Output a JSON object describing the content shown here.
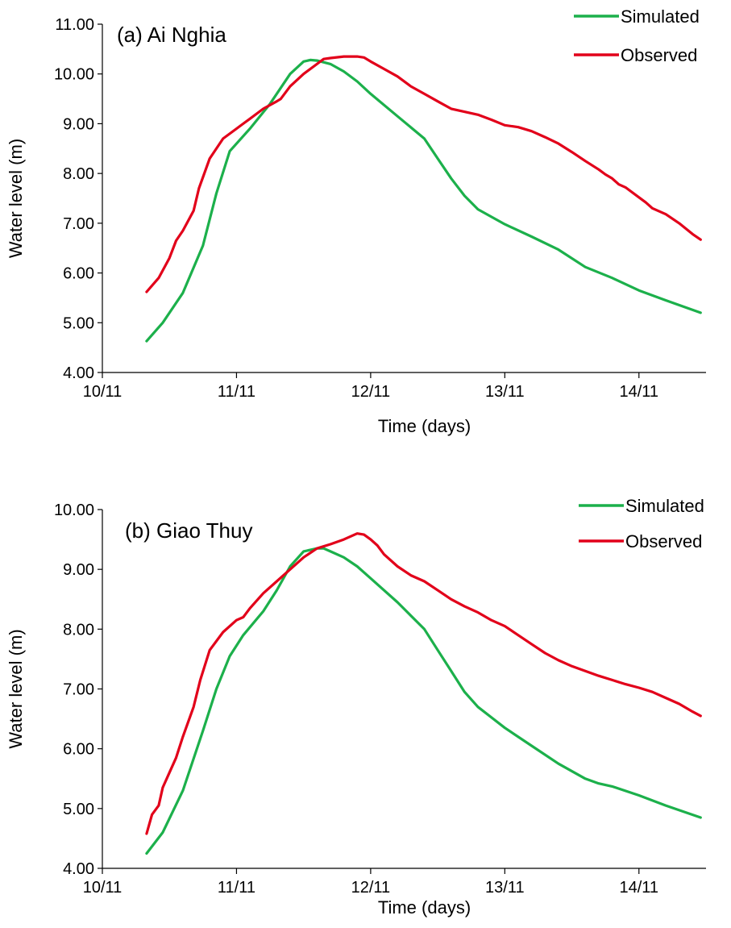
{
  "chart_data": [
    {
      "type": "line",
      "title": "(a) Ai Nghia",
      "xlabel": "Time (days)",
      "ylabel": "Water level (m)",
      "xlim": [
        0,
        4.5
      ],
      "ylim": [
        4,
        11
      ],
      "grid": false,
      "legend_position": "top-right",
      "x_ticks": [
        {
          "x": 0,
          "label": "10/11"
        },
        {
          "x": 1,
          "label": "11/11"
        },
        {
          "x": 2,
          "label": "12/11"
        },
        {
          "x": 3,
          "label": "13/11"
        },
        {
          "x": 4,
          "label": "14/11"
        }
      ],
      "y_ticks": [
        {
          "y": 4,
          "label": "4.00"
        },
        {
          "y": 5,
          "label": "5.00"
        },
        {
          "y": 6,
          "label": "6.00"
        },
        {
          "y": 7,
          "label": "7.00"
        },
        {
          "y": 8,
          "label": "8.00"
        },
        {
          "y": 9,
          "label": "9.00"
        },
        {
          "y": 10,
          "label": "10.00"
        },
        {
          "y": 11,
          "label": "11.00"
        }
      ],
      "series": [
        {
          "name": "Simulated",
          "color": "#1cb04b",
          "x": [
            0.33,
            0.45,
            0.6,
            0.75,
            0.85,
            0.95,
            1.1,
            1.25,
            1.4,
            1.5,
            1.55,
            1.6,
            1.7,
            1.8,
            1.9,
            2.0,
            2.2,
            2.4,
            2.5,
            2.6,
            2.7,
            2.8,
            3.0,
            3.2,
            3.4,
            3.6,
            3.8,
            4.0,
            4.2,
            4.46
          ],
          "y": [
            4.63,
            5.0,
            5.6,
            6.55,
            7.6,
            8.45,
            8.9,
            9.4,
            10.0,
            10.25,
            10.28,
            10.27,
            10.2,
            10.05,
            9.85,
            9.6,
            9.15,
            8.7,
            8.3,
            7.9,
            7.55,
            7.28,
            6.98,
            6.73,
            6.47,
            6.12,
            5.9,
            5.65,
            5.45,
            5.2
          ]
        },
        {
          "name": "Observed",
          "color": "#e2001a",
          "x": [
            0.33,
            0.42,
            0.5,
            0.55,
            0.6,
            0.68,
            0.72,
            0.8,
            0.9,
            1.0,
            1.05,
            1.1,
            1.2,
            1.3,
            1.33,
            1.4,
            1.5,
            1.6,
            1.65,
            1.7,
            1.8,
            1.9,
            1.95,
            2.0,
            2.1,
            2.2,
            2.3,
            2.4,
            2.5,
            2.6,
            2.8,
            2.9,
            3.0,
            3.1,
            3.2,
            3.3,
            3.4,
            3.5,
            3.6,
            3.7,
            3.75,
            3.8,
            3.85,
            3.9,
            4.0,
            4.05,
            4.1,
            4.2,
            4.3,
            4.4,
            4.46
          ],
          "y": [
            5.62,
            5.9,
            6.3,
            6.65,
            6.85,
            7.25,
            7.7,
            8.3,
            8.7,
            8.9,
            9.0,
            9.1,
            9.3,
            9.45,
            9.5,
            9.75,
            10.0,
            10.2,
            10.3,
            10.32,
            10.35,
            10.35,
            10.33,
            10.25,
            10.1,
            9.95,
            9.75,
            9.6,
            9.45,
            9.3,
            9.18,
            9.08,
            8.97,
            8.93,
            8.85,
            8.73,
            8.6,
            8.43,
            8.25,
            8.08,
            7.98,
            7.9,
            7.78,
            7.72,
            7.52,
            7.42,
            7.3,
            7.18,
            7.0,
            6.78,
            6.67
          ]
        }
      ]
    },
    {
      "type": "line",
      "title": "(b) Giao Thuy",
      "xlabel": "Time (days)",
      "ylabel": "Water level (m)",
      "xlim": [
        0,
        4.5
      ],
      "ylim": [
        4,
        10
      ],
      "grid": false,
      "legend_position": "top-right",
      "x_ticks": [
        {
          "x": 0,
          "label": "10/11"
        },
        {
          "x": 1,
          "label": "11/11"
        },
        {
          "x": 2,
          "label": "12/11"
        },
        {
          "x": 3,
          "label": "13/11"
        },
        {
          "x": 4,
          "label": "14/11"
        }
      ],
      "y_ticks": [
        {
          "y": 4,
          "label": "4.00"
        },
        {
          "y": 5,
          "label": "5.00"
        },
        {
          "y": 6,
          "label": "6.00"
        },
        {
          "y": 7,
          "label": "7.00"
        },
        {
          "y": 8,
          "label": "8.00"
        },
        {
          "y": 9,
          "label": "9.00"
        },
        {
          "y": 10,
          "label": "10.00"
        }
      ],
      "series": [
        {
          "name": "Simulated",
          "color": "#1cb04b",
          "x": [
            0.33,
            0.45,
            0.6,
            0.75,
            0.85,
            0.95,
            1.05,
            1.2,
            1.3,
            1.4,
            1.5,
            1.6,
            1.65,
            1.7,
            1.8,
            1.9,
            2.0,
            2.2,
            2.4,
            2.5,
            2.6,
            2.7,
            2.8,
            3.0,
            3.2,
            3.4,
            3.6,
            3.7,
            3.8,
            4.0,
            4.2,
            4.46
          ],
          "y": [
            4.25,
            4.6,
            5.3,
            6.3,
            7.0,
            7.55,
            7.9,
            8.3,
            8.65,
            9.05,
            9.3,
            9.35,
            9.35,
            9.3,
            9.2,
            9.05,
            8.85,
            8.45,
            8.0,
            7.65,
            7.3,
            6.95,
            6.7,
            6.35,
            6.05,
            5.75,
            5.5,
            5.42,
            5.37,
            5.22,
            5.05,
            4.85
          ]
        },
        {
          "name": "Observed",
          "color": "#e2001a",
          "x": [
            0.33,
            0.37,
            0.42,
            0.45,
            0.5,
            0.55,
            0.6,
            0.68,
            0.73,
            0.8,
            0.9,
            1.0,
            1.05,
            1.1,
            1.2,
            1.3,
            1.4,
            1.5,
            1.6,
            1.7,
            1.8,
            1.9,
            1.95,
            2.0,
            2.05,
            2.1,
            2.2,
            2.3,
            2.4,
            2.5,
            2.6,
            2.7,
            2.8,
            2.9,
            3.0,
            3.1,
            3.2,
            3.3,
            3.4,
            3.5,
            3.6,
            3.7,
            3.8,
            3.9,
            4.0,
            4.1,
            4.2,
            4.3,
            4.4,
            4.46
          ],
          "y": [
            4.58,
            4.9,
            5.05,
            5.35,
            5.6,
            5.85,
            6.2,
            6.7,
            7.15,
            7.65,
            7.95,
            8.15,
            8.2,
            8.35,
            8.6,
            8.8,
            9.0,
            9.2,
            9.35,
            9.42,
            9.5,
            9.6,
            9.58,
            9.5,
            9.4,
            9.25,
            9.05,
            8.9,
            8.8,
            8.65,
            8.5,
            8.38,
            8.28,
            8.15,
            8.05,
            7.9,
            7.75,
            7.6,
            7.48,
            7.38,
            7.3,
            7.22,
            7.15,
            7.08,
            7.02,
            6.95,
            6.85,
            6.75,
            6.62,
            6.55
          ]
        }
      ]
    }
  ]
}
